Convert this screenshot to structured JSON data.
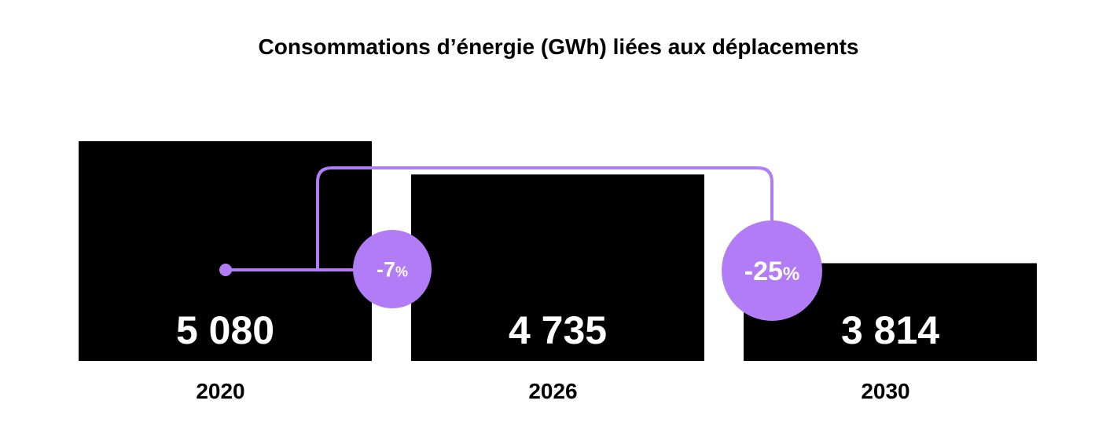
{
  "chart_data": {
    "type": "bar",
    "title": "Consommations d’énergie (GWh) liées aux déplacements",
    "categories": [
      "2020",
      "2026",
      "2030"
    ],
    "values": [
      5080,
      4735,
      3814
    ],
    "value_labels": [
      "5 080",
      "4 735",
      "3 814"
    ],
    "xlabel": "",
    "ylabel": "",
    "ylim": [
      2800,
      5080
    ],
    "grid": false,
    "annotations": [
      {
        "from": "2020",
        "to": "2026",
        "main": "-7",
        "suffix": "%"
      },
      {
        "from": "2020",
        "to": "2030",
        "main": "-25",
        "suffix": "%"
      }
    ]
  },
  "colors": {
    "bar": "#000000",
    "value_text": "#ffffff",
    "year_text": "#000000",
    "accent": "#b37cf7",
    "badge_text": "#ffffff",
    "background": "#ffffff"
  }
}
